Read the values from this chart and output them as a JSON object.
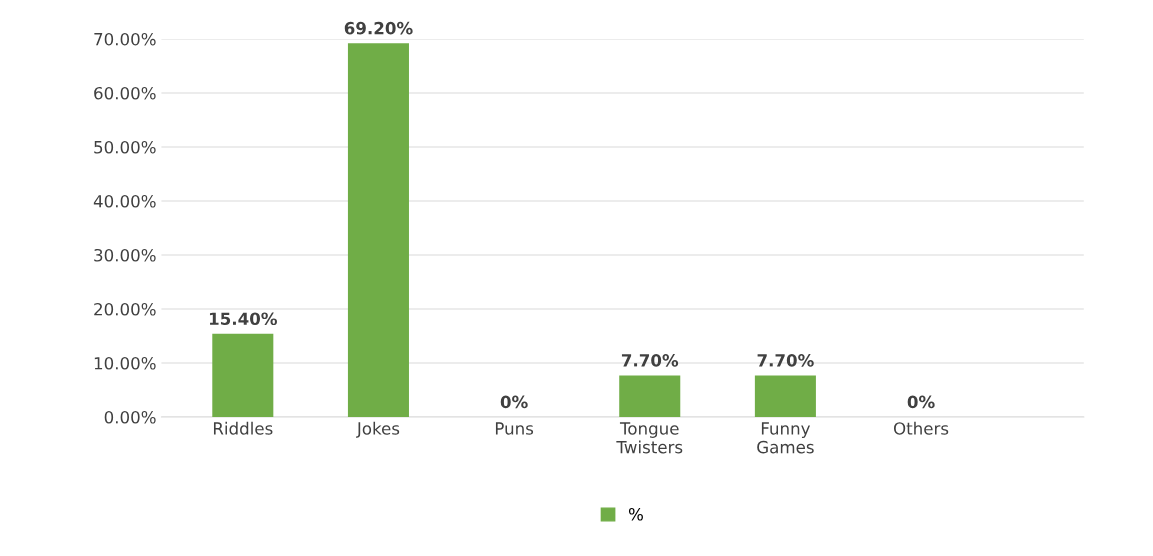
{
  "chart_data": {
    "type": "bar",
    "categories": [
      "Riddles",
      "Jokes",
      "Puns",
      "Tongue\nTwisters",
      "Funny\nGames",
      "Others"
    ],
    "series": [
      {
        "name": "%",
        "color": "#70ad47",
        "values": [
          15.4,
          69.2,
          0,
          7.7,
          7.7,
          0
        ],
        "value_labels": [
          "15.40%",
          "69.20%",
          "0%",
          "7.70%",
          "7.70%",
          "0%"
        ]
      }
    ],
    "ylim": [
      0,
      70
    ],
    "yticks": [
      {
        "value": 0,
        "label": "0.00%"
      },
      {
        "value": 10,
        "label": "10.00%"
      },
      {
        "value": 20,
        "label": "20.00%"
      },
      {
        "value": 30,
        "label": "30.00%"
      },
      {
        "value": 40,
        "label": "40.00%"
      },
      {
        "value": 50,
        "label": "50.00%"
      },
      {
        "value": 60,
        "label": "60.00%"
      },
      {
        "value": 70,
        "label": "70.00%"
      }
    ],
    "grid": "y",
    "legend": "bottom"
  }
}
